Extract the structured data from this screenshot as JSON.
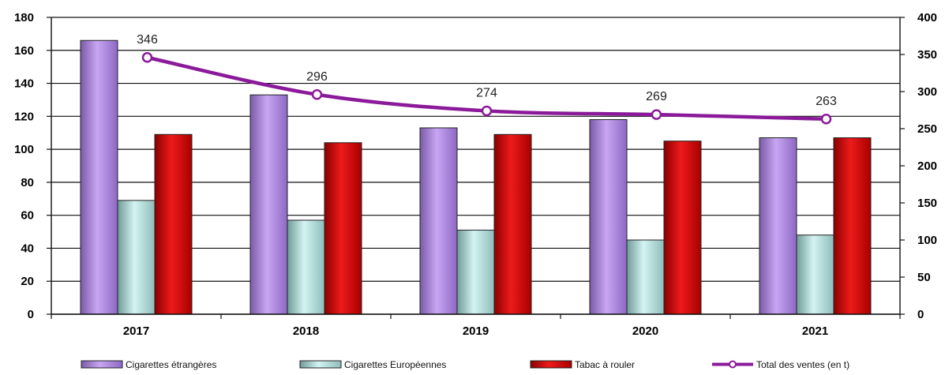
{
  "chart_data": {
    "type": "bar",
    "categories": [
      "2017",
      "2018",
      "2019",
      "2020",
      "2021"
    ],
    "series": [
      {
        "name": "Cigarettes étrangères",
        "kind": "bar",
        "axis": "left",
        "color": "#b58ae6",
        "values": [
          166,
          133,
          113,
          118,
          107
        ]
      },
      {
        "name": "Cigarettes Européennes",
        "kind": "bar",
        "axis": "left",
        "color": "#bfeae8",
        "values": [
          69,
          57,
          51,
          45,
          48
        ]
      },
      {
        "name": "Tabac à rouler",
        "kind": "bar",
        "axis": "left",
        "color": "#d40000",
        "values": [
          109,
          104,
          109,
          105,
          107
        ]
      },
      {
        "name": "Total des ventes (en t)",
        "kind": "line",
        "axis": "right",
        "color": "#8b1a9a",
        "values": [
          346,
          296,
          274,
          269,
          263
        ],
        "data_labels": [
          "346",
          "296",
          "274",
          "269",
          "263"
        ]
      }
    ],
    "ylim_left": [
      0,
      180
    ],
    "yticks_left": [
      "0",
      "20",
      "40",
      "60",
      "80",
      "100",
      "120",
      "140",
      "160",
      "180"
    ],
    "ylim_right": [
      0,
      400
    ],
    "yticks_right": [
      "0",
      "50",
      "100",
      "150",
      "200",
      "250",
      "300",
      "350",
      "400"
    ],
    "grid": true,
    "legend_position": "bottom"
  }
}
